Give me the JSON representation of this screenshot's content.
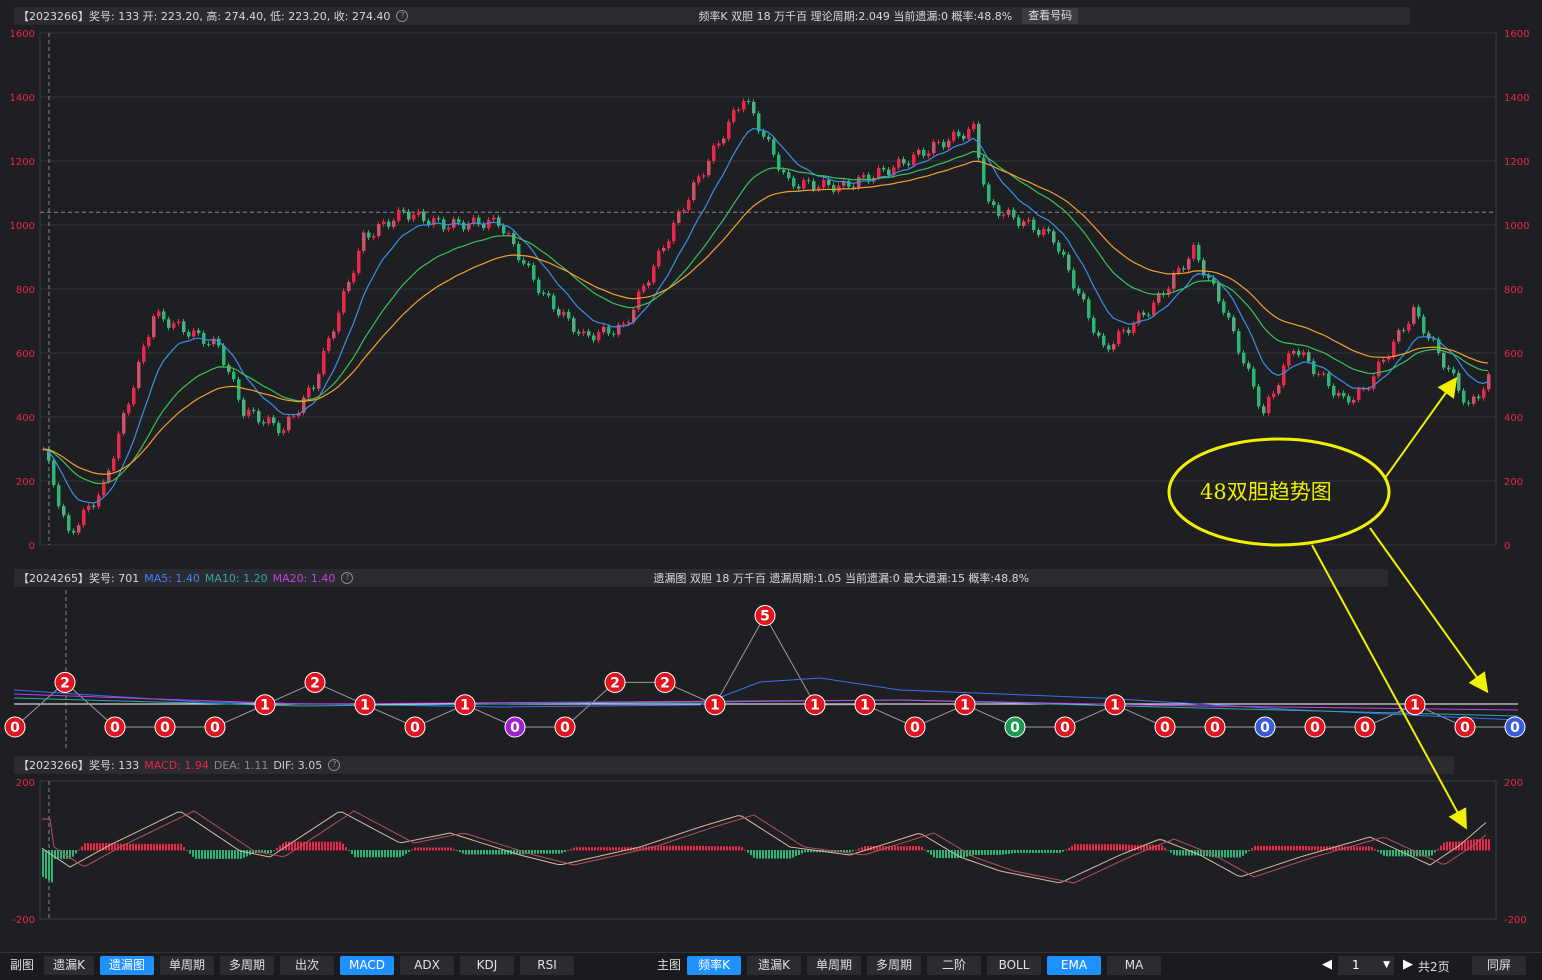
{
  "kline": {
    "header_left": "【2023266】奖号: 133   开: 223.20, 高: 274.40, 低: 223.20, 收: 274.40",
    "header_right": "频率K   双胆   18   万千百   理论周期:2.049   当前遗漏:0   概率:48.8%",
    "query_button": "查看号码",
    "y_ticks": [
      "1600",
      "1400",
      "1200",
      "1000",
      "800",
      "600",
      "400",
      "200",
      "0"
    ],
    "y_max": 1600,
    "ref_line": 1040
  },
  "miss": {
    "header_left_prefix": "【2024265】奖号: 701",
    "ma5": "MA5: 1.40",
    "ma10": "MA10: 1.20",
    "ma20": "MA20: 1.40",
    "header_right": "遗漏图   双胆   18   万千百   遗漏周期:1.05   当前遗漏:0   最大遗漏:15   概率:48.8%",
    "nodes": [
      {
        "v": "0",
        "c": "red"
      },
      {
        "v": "2",
        "c": "red"
      },
      {
        "v": "0",
        "c": "red"
      },
      {
        "v": "0",
        "c": "red"
      },
      {
        "v": "0",
        "c": "red"
      },
      {
        "v": "1",
        "c": "red"
      },
      {
        "v": "2",
        "c": "red"
      },
      {
        "v": "1",
        "c": "red"
      },
      {
        "v": "0",
        "c": "red"
      },
      {
        "v": "1",
        "c": "red"
      },
      {
        "v": "0",
        "c": "purple"
      },
      {
        "v": "0",
        "c": "red"
      },
      {
        "v": "2",
        "c": "red"
      },
      {
        "v": "2",
        "c": "red"
      },
      {
        "v": "1",
        "c": "red"
      },
      {
        "v": "5",
        "c": "red"
      },
      {
        "v": "1",
        "c": "red"
      },
      {
        "v": "1",
        "c": "red"
      },
      {
        "v": "0",
        "c": "red"
      },
      {
        "v": "1",
        "c": "red"
      },
      {
        "v": "0",
        "c": "green"
      },
      {
        "v": "0",
        "c": "red"
      },
      {
        "v": "1",
        "c": "red"
      },
      {
        "v": "0",
        "c": "red"
      },
      {
        "v": "0",
        "c": "red"
      },
      {
        "v": "0",
        "c": "blue"
      },
      {
        "v": "0",
        "c": "red"
      },
      {
        "v": "0",
        "c": "red"
      },
      {
        "v": "1",
        "c": "red"
      },
      {
        "v": "0",
        "c": "red"
      },
      {
        "v": "0",
        "c": "blue"
      }
    ]
  },
  "macd": {
    "header_prefix": "【2023266】奖号: 133",
    "macd": "MACD: 1.94",
    "dea": "DEA: 1.11",
    "dif": "DIF: 3.05",
    "y_top": "200",
    "y_bottom": "-200"
  },
  "annotation": "48双胆趋势图",
  "toolbar": {
    "left_label": "副图",
    "left_items": [
      {
        "label": "遗漏K",
        "active": false
      },
      {
        "label": "遗漏图",
        "active": true
      },
      {
        "label": "单周期",
        "active": false
      },
      {
        "label": "多周期",
        "active": false
      },
      {
        "label": "出次",
        "active": false
      },
      {
        "label": "MACD",
        "active": true
      },
      {
        "label": "ADX",
        "active": false
      },
      {
        "label": "KDJ",
        "active": false
      },
      {
        "label": "RSI",
        "active": false
      }
    ],
    "main_label": "主图",
    "main_items": [
      {
        "label": "频率K",
        "active": true
      },
      {
        "label": "遗漏K",
        "active": false
      },
      {
        "label": "单周期",
        "active": false
      },
      {
        "label": "多周期",
        "active": false
      },
      {
        "label": "二阶",
        "active": false
      },
      {
        "label": "BOLL",
        "active": false
      },
      {
        "label": "EMA",
        "active": true
      },
      {
        "label": "MA",
        "active": false
      }
    ],
    "page_value": "1",
    "page_total": "共2页",
    "fullscreen": "同屏"
  },
  "colors": {
    "up": "#e8274a",
    "down": "#2bb673",
    "ema_blue": "#3b8fe8",
    "ema_green": "#3dbf5b",
    "ema_orange": "#f0a030",
    "yellow": "#f0f000"
  }
}
